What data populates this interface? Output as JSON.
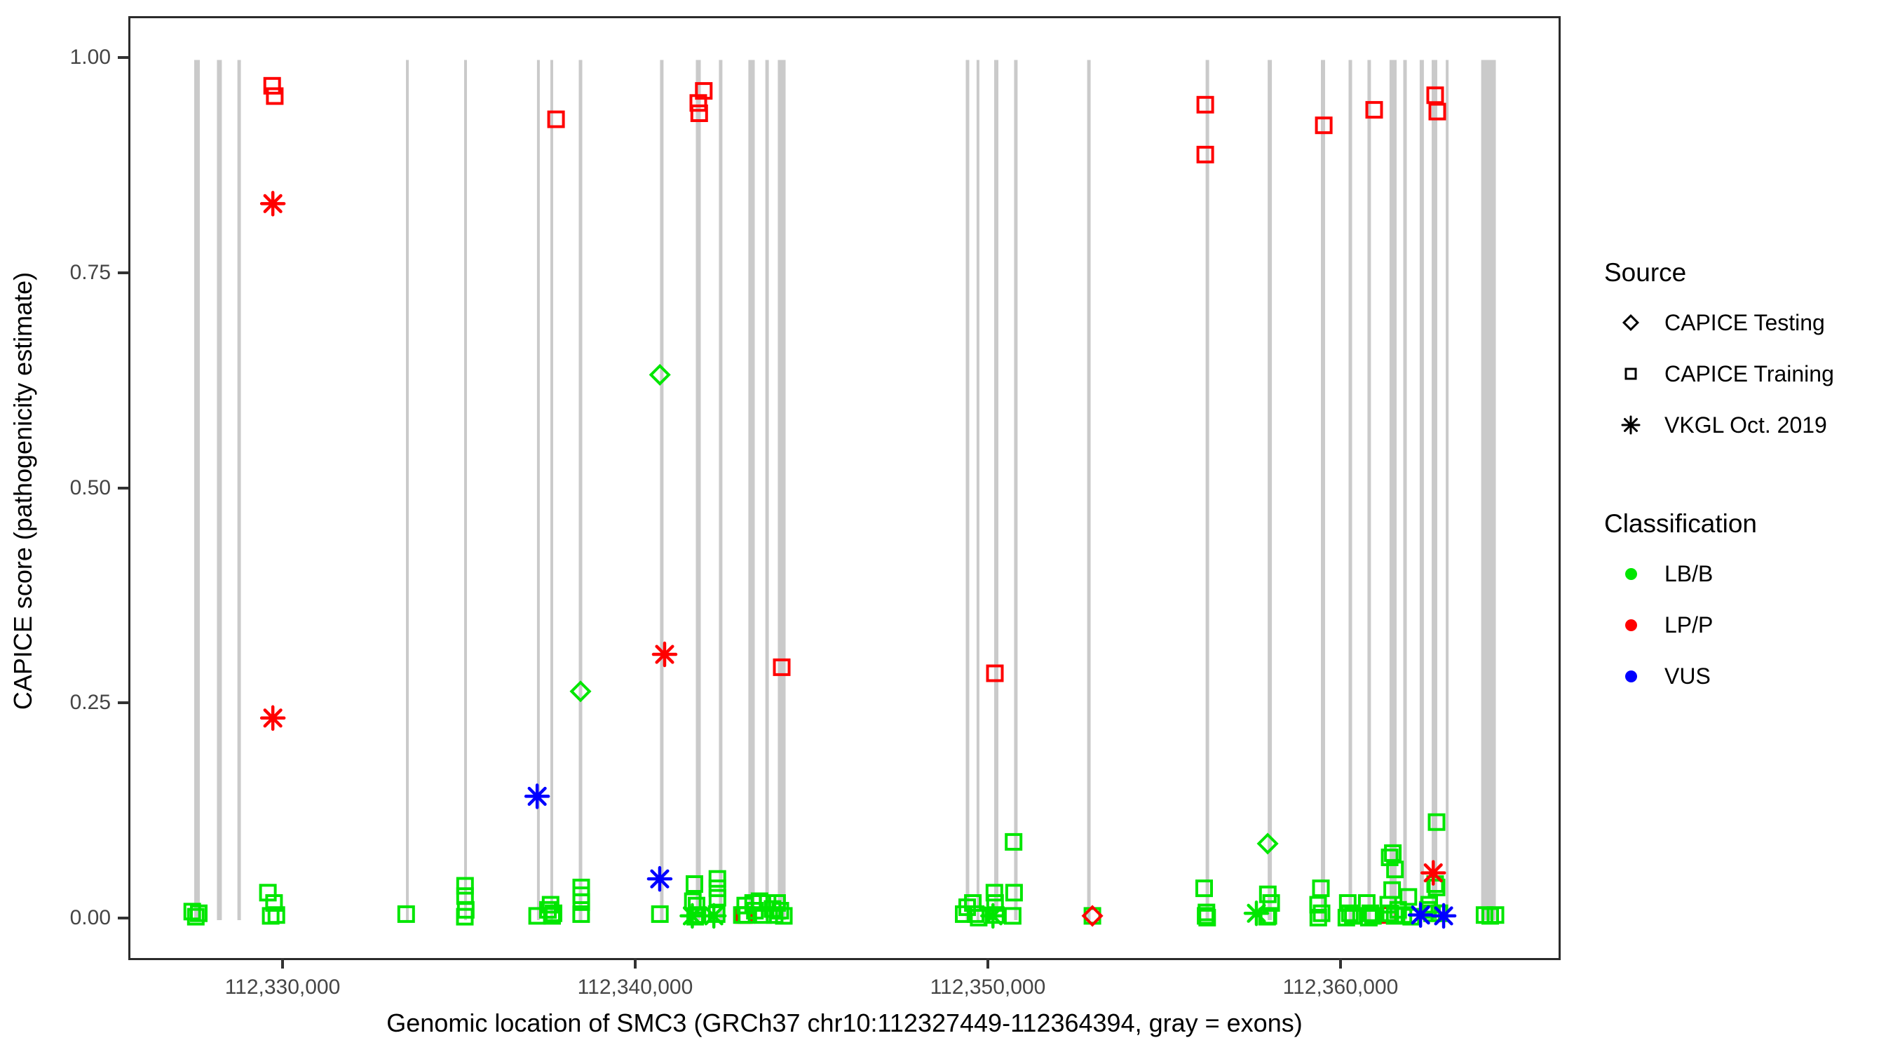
{
  "y_axis": {
    "title": "CAPICE score (pathogenicity estimate)",
    "ticks": [
      {
        "label": "1.00",
        "value": 1.0
      },
      {
        "label": "0.75",
        "value": 0.75
      },
      {
        "label": "0.50",
        "value": 0.5
      },
      {
        "label": "0.25",
        "value": 0.25
      },
      {
        "label": "0.00",
        "value": 0.0
      }
    ]
  },
  "x_axis": {
    "title": "Genomic location of SMC3 (GRCh37 chr10:112327449-112364394, gray = exons)",
    "ticks": [
      {
        "label": "112,330,000",
        "value": 112330000
      },
      {
        "label": "112,340,000",
        "value": 112340000
      },
      {
        "label": "112,350,000",
        "value": 112350000
      },
      {
        "label": "112,360,000",
        "value": 112360000
      }
    ]
  },
  "legend": {
    "source": {
      "title": "Source",
      "items": [
        {
          "label": "CAPICE Testing",
          "shape": "diamond"
        },
        {
          "label": "CAPICE Training",
          "shape": "square"
        },
        {
          "label": "VKGL Oct. 2019",
          "shape": "asterisk"
        }
      ]
    },
    "classification": {
      "title": "Classification",
      "items": [
        {
          "label": "LB/B",
          "color": "#00e600"
        },
        {
          "label": "LP/P",
          "color": "#ff0000"
        },
        {
          "label": "VUS",
          "color": "#0000ff"
        }
      ]
    }
  },
  "colors": {
    "LB/B": "#00e600",
    "LP/P": "#ff0000",
    "VUS": "#0000ff",
    "exon": "#cacaca",
    "axis": "#2b2b2b"
  },
  "chart_data": {
    "type": "scatter",
    "title": "",
    "xlabel": "Genomic location of SMC3 (GRCh37 chr10:112327449-112364394, gray = exons)",
    "ylabel": "CAPICE score (pathogenicity estimate)",
    "x_domain": [
      112325626,
      112366124
    ],
    "y_domain": [
      -0.044,
      1.0485
    ],
    "grid": false,
    "legend_position": "right",
    "exon_span_scores": [
      0,
      1
    ],
    "exons": [
      {
        "start": 112327435,
        "end": 112327595
      },
      {
        "start": 112328080,
        "end": 112328220
      },
      {
        "start": 112328660,
        "end": 112328760
      },
      {
        "start": 112333440,
        "end": 112333520
      },
      {
        "start": 112335090,
        "end": 112335170
      },
      {
        "start": 112337155,
        "end": 112337235
      },
      {
        "start": 112337535,
        "end": 112337615
      },
      {
        "start": 112338340,
        "end": 112338440
      },
      {
        "start": 112340645,
        "end": 112340745
      },
      {
        "start": 112341660,
        "end": 112341800
      },
      {
        "start": 112342315,
        "end": 112342415
      },
      {
        "start": 112343150,
        "end": 112343330
      },
      {
        "start": 112343630,
        "end": 112343730
      },
      {
        "start": 112343985,
        "end": 112344205
      },
      {
        "start": 112349315,
        "end": 112349415
      },
      {
        "start": 112349620,
        "end": 112349700
      },
      {
        "start": 112350120,
        "end": 112350240
      },
      {
        "start": 112350685,
        "end": 112350785
      },
      {
        "start": 112352755,
        "end": 112352855
      },
      {
        "start": 112356115,
        "end": 112356215
      },
      {
        "start": 112357875,
        "end": 112357995
      },
      {
        "start": 112359385,
        "end": 112359505
      },
      {
        "start": 112360170,
        "end": 112360270
      },
      {
        "start": 112360705,
        "end": 112360805
      },
      {
        "start": 112361330,
        "end": 112361530
      },
      {
        "start": 112361720,
        "end": 112361820
      },
      {
        "start": 112362185,
        "end": 112362305
      },
      {
        "start": 112362525,
        "end": 112362685
      },
      {
        "start": 112362925,
        "end": 112363005
      },
      {
        "start": 112363930,
        "end": 112364345
      }
    ],
    "points": [
      {
        "g": 112343025,
        "score": 0.006,
        "shape": "square",
        "class": "LP/P"
      },
      {
        "g": 112361295,
        "score": 0.006,
        "shape": "square",
        "class": "LP/P"
      },
      {
        "g": 112327380,
        "score": 0.01,
        "shape": "square",
        "class": "LB/B"
      },
      {
        "g": 112327480,
        "score": 0.004,
        "shape": "square",
        "class": "LB/B"
      },
      {
        "g": 112327565,
        "score": 0.008,
        "shape": "square",
        "class": "LB/B"
      },
      {
        "g": 112329525,
        "score": 0.032,
        "shape": "square",
        "class": "LB/B"
      },
      {
        "g": 112329605,
        "score": 0.005,
        "shape": "square",
        "class": "LB/B"
      },
      {
        "g": 112329700,
        "score": 0.02,
        "shape": "square",
        "class": "LB/B"
      },
      {
        "g": 112329765,
        "score": 0.006,
        "shape": "square",
        "class": "LB/B"
      },
      {
        "g": 112333445,
        "score": 0.007,
        "shape": "square",
        "class": "LB/B"
      },
      {
        "g": 112335115,
        "score": 0.04,
        "shape": "square",
        "class": "LB/B"
      },
      {
        "g": 112335115,
        "score": 0.028,
        "shape": "square",
        "class": "LB/B"
      },
      {
        "g": 112335135,
        "score": 0.012,
        "shape": "square",
        "class": "LB/B"
      },
      {
        "g": 112335110,
        "score": 0.004,
        "shape": "square",
        "class": "LB/B"
      },
      {
        "g": 112337160,
        "score": 0.005,
        "shape": "square",
        "class": "LB/B"
      },
      {
        "g": 112337465,
        "score": 0.012,
        "shape": "square",
        "class": "LB/B"
      },
      {
        "g": 112337540,
        "score": 0.018,
        "shape": "square",
        "class": "LB/B"
      },
      {
        "g": 112337585,
        "score": 0.005,
        "shape": "square",
        "class": "LB/B"
      },
      {
        "g": 112337625,
        "score": 0.008,
        "shape": "square",
        "class": "LB/B"
      },
      {
        "g": 112338410,
        "score": 0.038,
        "shape": "square",
        "class": "LB/B"
      },
      {
        "g": 112338410,
        "score": 0.029,
        "shape": "square",
        "class": "LB/B"
      },
      {
        "g": 112338412,
        "score": 0.021,
        "shape": "square",
        "class": "LB/B"
      },
      {
        "g": 112338408,
        "score": 0.007,
        "shape": "square",
        "class": "LB/B"
      },
      {
        "g": 112340640,
        "score": 0.007,
        "shape": "square",
        "class": "LB/B"
      },
      {
        "g": 112341620,
        "score": 0.042,
        "shape": "square",
        "class": "LB/B"
      },
      {
        "g": 112341575,
        "score": 0.022,
        "shape": "square",
        "class": "LB/B"
      },
      {
        "g": 112341680,
        "score": 0.017,
        "shape": "square",
        "class": "LB/B"
      },
      {
        "g": 112341560,
        "score": 0.005,
        "shape": "asterisk",
        "class": "LB/B"
      },
      {
        "g": 112341705,
        "score": 0.006,
        "shape": "square",
        "class": "LB/B"
      },
      {
        "g": 112341640,
        "score": 0.004,
        "shape": "square",
        "class": "LB/B"
      },
      {
        "g": 112342270,
        "score": 0.048,
        "shape": "square",
        "class": "LB/B"
      },
      {
        "g": 112342270,
        "score": 0.037,
        "shape": "square",
        "class": "LB/B"
      },
      {
        "g": 112342272,
        "score": 0.026,
        "shape": "square",
        "class": "LB/B"
      },
      {
        "g": 112342250,
        "score": 0.007,
        "shape": "square",
        "class": "LB/B"
      },
      {
        "g": 112342170,
        "score": 0.005,
        "shape": "asterisk",
        "class": "LB/B"
      },
      {
        "g": 112342965,
        "score": 0.006,
        "shape": "square",
        "class": "LB/B"
      },
      {
        "g": 112343060,
        "score": 0.017,
        "shape": "square",
        "class": "LB/B"
      },
      {
        "g": 112343095,
        "score": 0.006,
        "shape": "square",
        "class": "LB/B"
      },
      {
        "g": 112343285,
        "score": 0.02,
        "shape": "square",
        "class": "LB/B"
      },
      {
        "g": 112343335,
        "score": 0.011,
        "shape": "square",
        "class": "LB/B"
      },
      {
        "g": 112343465,
        "score": 0.022,
        "shape": "square",
        "class": "LB/B"
      },
      {
        "g": 112343565,
        "score": 0.006,
        "shape": "square",
        "class": "LB/B"
      },
      {
        "g": 112343695,
        "score": 0.02,
        "shape": "square",
        "class": "LB/B"
      },
      {
        "g": 112343835,
        "score": 0.013,
        "shape": "square",
        "class": "LB/B"
      },
      {
        "g": 112343895,
        "score": 0.006,
        "shape": "square",
        "class": "LB/B"
      },
      {
        "g": 112343965,
        "score": 0.02,
        "shape": "square",
        "class": "LB/B"
      },
      {
        "g": 112344055,
        "score": 0.011,
        "shape": "square",
        "class": "LB/B"
      },
      {
        "g": 112344155,
        "score": 0.005,
        "shape": "square",
        "class": "LB/B"
      },
      {
        "g": 112349255,
        "score": 0.007,
        "shape": "square",
        "class": "LB/B"
      },
      {
        "g": 112349355,
        "score": 0.015,
        "shape": "square",
        "class": "LB/B"
      },
      {
        "g": 112349515,
        "score": 0.02,
        "shape": "square",
        "class": "LB/B"
      },
      {
        "g": 112349595,
        "score": 0.007,
        "shape": "square",
        "class": "LB/B"
      },
      {
        "g": 112349680,
        "score": 0.003,
        "shape": "square",
        "class": "LB/B"
      },
      {
        "g": 112350125,
        "score": 0.032,
        "shape": "square",
        "class": "LB/B"
      },
      {
        "g": 112350145,
        "score": 0.02,
        "shape": "square",
        "class": "LB/B"
      },
      {
        "g": 112350085,
        "score": 0.005,
        "shape": "asterisk",
        "class": "LB/B"
      },
      {
        "g": 112350165,
        "score": 0.006,
        "shape": "square",
        "class": "LB/B"
      },
      {
        "g": 112350670,
        "score": 0.091,
        "shape": "square",
        "class": "LB/B"
      },
      {
        "g": 112350685,
        "score": 0.032,
        "shape": "square",
        "class": "LB/B"
      },
      {
        "g": 112350645,
        "score": 0.005,
        "shape": "square",
        "class": "LB/B"
      },
      {
        "g": 112352905,
        "score": 0.005,
        "shape": "square",
        "class": "LB/B"
      },
      {
        "g": 112356075,
        "score": 0.037,
        "shape": "square",
        "class": "LB/B"
      },
      {
        "g": 112356115,
        "score": 0.005,
        "shape": "square",
        "class": "LB/B"
      },
      {
        "g": 112356140,
        "score": 0.009,
        "shape": "square",
        "class": "LB/B"
      },
      {
        "g": 112356160,
        "score": 0.003,
        "shape": "square",
        "class": "LB/B"
      },
      {
        "g": 112357555,
        "score": 0.008,
        "shape": "asterisk",
        "class": "LB/B"
      },
      {
        "g": 112357880,
        "score": 0.03,
        "shape": "square",
        "class": "LB/B"
      },
      {
        "g": 112357975,
        "score": 0.02,
        "shape": "square",
        "class": "LB/B"
      },
      {
        "g": 112357895,
        "score": 0.005,
        "shape": "square",
        "class": "LB/B"
      },
      {
        "g": 112357860,
        "score": 0.004,
        "shape": "square",
        "class": "LB/B"
      },
      {
        "g": 112357875,
        "score": 0.089,
        "shape": "diamond",
        "class": "LB/B"
      },
      {
        "g": 112359385,
        "score": 0.037,
        "shape": "square",
        "class": "LB/B"
      },
      {
        "g": 112359305,
        "score": 0.018,
        "shape": "square",
        "class": "LB/B"
      },
      {
        "g": 112359405,
        "score": 0.008,
        "shape": "square",
        "class": "LB/B"
      },
      {
        "g": 112359310,
        "score": 0.003,
        "shape": "square",
        "class": "LB/B"
      },
      {
        "g": 112360145,
        "score": 0.02,
        "shape": "square",
        "class": "LB/B"
      },
      {
        "g": 112360205,
        "score": 0.008,
        "shape": "square",
        "class": "LB/B"
      },
      {
        "g": 112360290,
        "score": 0.005,
        "shape": "square",
        "class": "LB/B"
      },
      {
        "g": 112360105,
        "score": 0.003,
        "shape": "square",
        "class": "LB/B"
      },
      {
        "g": 112360685,
        "score": 0.02,
        "shape": "square",
        "class": "LB/B"
      },
      {
        "g": 112360785,
        "score": 0.008,
        "shape": "square",
        "class": "LB/B"
      },
      {
        "g": 112360860,
        "score": 0.005,
        "shape": "square",
        "class": "LB/B"
      },
      {
        "g": 112360745,
        "score": 0.003,
        "shape": "square",
        "class": "LB/B"
      },
      {
        "g": 112361425,
        "score": 0.078,
        "shape": "square",
        "class": "LB/B"
      },
      {
        "g": 112361335,
        "score": 0.073,
        "shape": "square",
        "class": "LB/B"
      },
      {
        "g": 112361485,
        "score": 0.059,
        "shape": "square",
        "class": "LB/B"
      },
      {
        "g": 112361405,
        "score": 0.035,
        "shape": "square",
        "class": "LB/B"
      },
      {
        "g": 112361865,
        "score": 0.027,
        "shape": "square",
        "class": "LB/B"
      },
      {
        "g": 112361295,
        "score": 0.018,
        "shape": "square",
        "class": "LB/B"
      },
      {
        "g": 112361355,
        "score": 0.008,
        "shape": "square",
        "class": "LB/B"
      },
      {
        "g": 112361475,
        "score": 0.005,
        "shape": "square",
        "class": "LB/B"
      },
      {
        "g": 112361575,
        "score": 0.012,
        "shape": "square",
        "class": "LB/B"
      },
      {
        "g": 112361725,
        "score": 0.006,
        "shape": "square",
        "class": "LB/B"
      },
      {
        "g": 112361945,
        "score": 0.004,
        "shape": "square",
        "class": "LB/B"
      },
      {
        "g": 112362665,
        "score": 0.114,
        "shape": "square",
        "class": "LB/B"
      },
      {
        "g": 112362625,
        "score": 0.042,
        "shape": "square",
        "class": "LB/B"
      },
      {
        "g": 112362665,
        "score": 0.038,
        "shape": "square",
        "class": "LB/B"
      },
      {
        "g": 112362455,
        "score": 0.018,
        "shape": "square",
        "class": "LB/B"
      },
      {
        "g": 112362535,
        "score": 0.008,
        "shape": "square",
        "class": "LB/B"
      },
      {
        "g": 112362415,
        "score": 0.012,
        "shape": "square",
        "class": "LB/B"
      },
      {
        "g": 112362745,
        "score": 0.008,
        "shape": "square",
        "class": "LB/B"
      },
      {
        "g": 112364025,
        "score": 0.006,
        "shape": "square",
        "class": "LB/B"
      },
      {
        "g": 112364185,
        "score": 0.005,
        "shape": "square",
        "class": "LB/B"
      },
      {
        "g": 112364335,
        "score": 0.006,
        "shape": "square",
        "class": "LB/B"
      },
      {
        "g": 112340640,
        "score": 0.634,
        "shape": "diamond",
        "class": "LB/B"
      },
      {
        "g": 112338390,
        "score": 0.266,
        "shape": "diamond",
        "class": "LB/B"
      },
      {
        "g": 112337160,
        "score": 0.144,
        "shape": "asterisk",
        "class": "VUS"
      },
      {
        "g": 112340635,
        "score": 0.048,
        "shape": "asterisk",
        "class": "VUS"
      },
      {
        "g": 112362210,
        "score": 0.006,
        "shape": "asterisk",
        "class": "VUS"
      },
      {
        "g": 112362865,
        "score": 0.005,
        "shape": "asterisk",
        "class": "VUS"
      },
      {
        "g": 112329645,
        "score": 0.97,
        "shape": "square",
        "class": "LP/P"
      },
      {
        "g": 112329720,
        "score": 0.958,
        "shape": "square",
        "class": "LP/P"
      },
      {
        "g": 112329665,
        "score": 0.833,
        "shape": "asterisk",
        "class": "LP/P"
      },
      {
        "g": 112329665,
        "score": 0.235,
        "shape": "asterisk",
        "class": "LP/P"
      },
      {
        "g": 112337695,
        "score": 0.931,
        "shape": "square",
        "class": "LP/P"
      },
      {
        "g": 112341885,
        "score": 0.964,
        "shape": "square",
        "class": "LP/P"
      },
      {
        "g": 112341730,
        "score": 0.95,
        "shape": "square",
        "class": "LP/P"
      },
      {
        "g": 112341755,
        "score": 0.938,
        "shape": "square",
        "class": "LP/P"
      },
      {
        "g": 112340775,
        "score": 0.309,
        "shape": "asterisk",
        "class": "LP/P"
      },
      {
        "g": 112344095,
        "score": 0.294,
        "shape": "square",
        "class": "LP/P"
      },
      {
        "g": 112350140,
        "score": 0.287,
        "shape": "square",
        "class": "LP/P"
      },
      {
        "g": 112356105,
        "score": 0.948,
        "shape": "square",
        "class": "LP/P"
      },
      {
        "g": 112356105,
        "score": 0.89,
        "shape": "square",
        "class": "LP/P"
      },
      {
        "g": 112359465,
        "score": 0.924,
        "shape": "square",
        "class": "LP/P"
      },
      {
        "g": 112360895,
        "score": 0.942,
        "shape": "square",
        "class": "LP/P"
      },
      {
        "g": 112362625,
        "score": 0.959,
        "shape": "square",
        "class": "LP/P"
      },
      {
        "g": 112362685,
        "score": 0.94,
        "shape": "square",
        "class": "LP/P"
      },
      {
        "g": 112362570,
        "score": 0.055,
        "shape": "asterisk",
        "class": "LP/P"
      },
      {
        "g": 112352905,
        "score": 0.005,
        "shape": "diamond",
        "class": "LP/P"
      }
    ]
  }
}
